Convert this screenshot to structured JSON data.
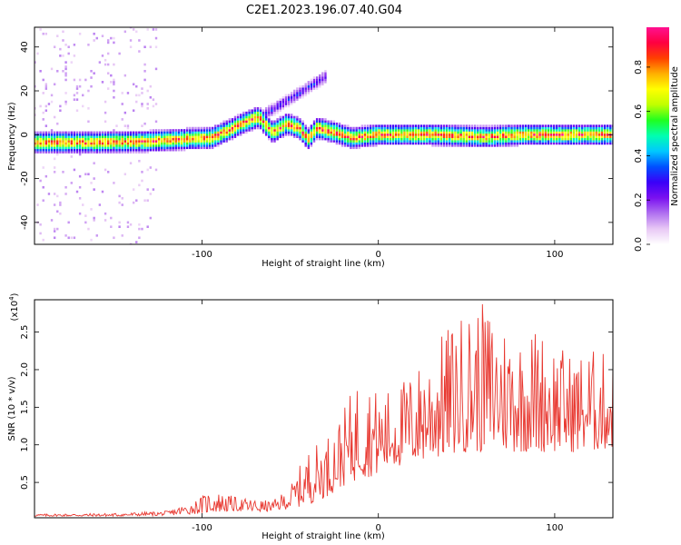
{
  "figure": {
    "title": "C2E1.2023.196.07.40.G04"
  },
  "colors": {
    "snr_line": "#e8372f",
    "background": "#ffffff",
    "axis": "#000000"
  },
  "chart_data": [
    {
      "type": "heatmap",
      "title": "",
      "xlabel": "Height of straight line (km)",
      "ylabel": "Frequency (Hz)",
      "xlim": [
        -195,
        133
      ],
      "ylim": [
        -50,
        49
      ],
      "x_ticks": [
        -100,
        0,
        100
      ],
      "y_ticks": [
        -40,
        -20,
        0,
        20,
        40
      ],
      "grid": false,
      "colorbar": {
        "label": "Normalized spectral amplitude",
        "range": [
          0,
          0.98
        ],
        "ticks": [
          0.0,
          0.2,
          0.4,
          0.6,
          0.8
        ],
        "colormap": [
          "#ffffff",
          "#e8c8f5",
          "#b070f0",
          "#7a10f0",
          "#3a00f8",
          "#0050ff",
          "#00c8ff",
          "#00ffb0",
          "#20ff20",
          "#c0ff00",
          "#ffff00",
          "#ffb000",
          "#ff4000",
          "#ff0040",
          "#ff1090"
        ]
      },
      "ridge": {
        "description_points": [
          {
            "x": -195,
            "y": -3.5
          },
          {
            "x": -160,
            "y": -3.5
          },
          {
            "x": -130,
            "y": -3.0
          },
          {
            "x": -110,
            "y": -2.0
          },
          {
            "x": -95,
            "y": -1.5
          },
          {
            "x": -85,
            "y": 2.0
          },
          {
            "x": -75,
            "y": 6.0
          },
          {
            "x": -68,
            "y": 8.0
          },
          {
            "x": -60,
            "y": 1.0
          },
          {
            "x": -52,
            "y": 5.0
          },
          {
            "x": -45,
            "y": 3.0
          },
          {
            "x": -40,
            "y": -2.0
          },
          {
            "x": -35,
            "y": 3.0
          },
          {
            "x": -25,
            "y": 1.0
          },
          {
            "x": -15,
            "y": -1.5
          },
          {
            "x": 0,
            "y": 0.0
          },
          {
            "x": 30,
            "y": 0.0
          },
          {
            "x": 60,
            "y": -1.0
          },
          {
            "x": 80,
            "y": 0.0
          },
          {
            "x": 133,
            "y": 0.0
          }
        ],
        "secondary_branch": [
          {
            "x": -65,
            "y": 9.0
          },
          {
            "x": -50,
            "y": 16.0
          },
          {
            "x": -35,
            "y": 24.0
          }
        ]
      }
    },
    {
      "type": "line",
      "title": "",
      "xlabel": "Height of straight line (km)",
      "ylabel": "SNR (10 * v/v)",
      "y_multiplier": "(x10",
      "y_multiplier_exp": "4",
      "y_multiplier_close": ")",
      "xlim": [
        -195,
        133
      ],
      "ylim": [
        0.03,
        2.93
      ],
      "x_ticks": [
        -100,
        0,
        100
      ],
      "y_ticks": [
        0.5,
        1.0,
        1.5,
        2.0,
        2.5
      ],
      "grid": false,
      "series": [
        {
          "envelope_x": [
            -195,
            -150,
            -120,
            -105,
            -95,
            -80,
            -70,
            -60,
            -50,
            -40,
            -30,
            -20,
            -10,
            0,
            10,
            20,
            30,
            40,
            50,
            60,
            70,
            80,
            90,
            100,
            110,
            120,
            133
          ],
          "envelope_low": [
            0.05,
            0.05,
            0.06,
            0.08,
            0.1,
            0.12,
            0.1,
            0.12,
            0.15,
            0.2,
            0.3,
            0.45,
            0.55,
            0.6,
            0.7,
            0.75,
            0.8,
            0.85,
            0.9,
            0.9,
            0.9,
            0.9,
            0.9,
            0.9,
            0.9,
            0.9,
            0.95
          ],
          "envelope_high": [
            0.08,
            0.09,
            0.12,
            0.25,
            0.4,
            0.3,
            0.28,
            0.25,
            0.45,
            0.95,
            1.1,
            1.45,
            2.0,
            1.7,
            1.8,
            2.0,
            2.3,
            2.6,
            2.8,
            2.9,
            2.7,
            2.5,
            2.6,
            2.4,
            2.2,
            2.3,
            2.2
          ]
        }
      ]
    }
  ]
}
